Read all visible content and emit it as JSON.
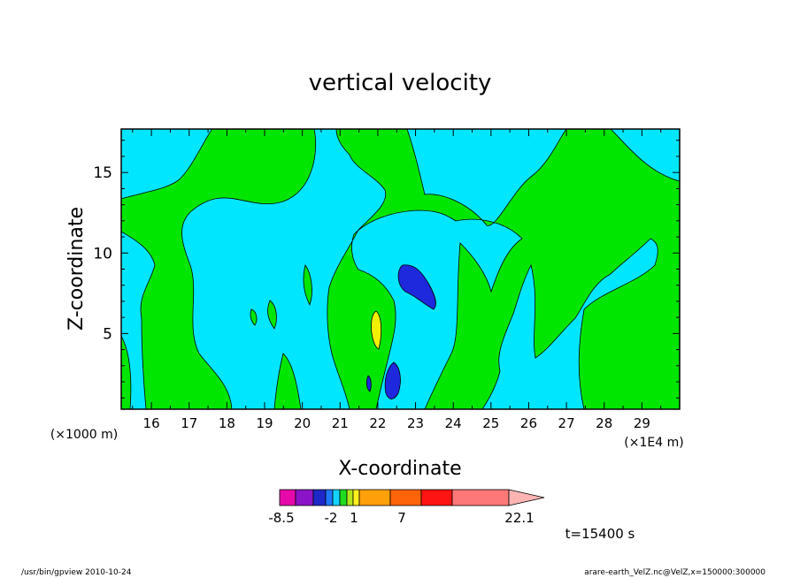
{
  "chart_data": {
    "type": "contour",
    "title": "vertical velocity",
    "xlabel": "X-coordinate",
    "ylabel": "Z-coordinate",
    "x_scale_note": "(×1000 m)",
    "x_unit_note": "(×1E4 m)",
    "xlim": [
      15.2,
      30
    ],
    "ylim": [
      0.3,
      17.7
    ],
    "x_ticks": [
      16,
      17,
      18,
      19,
      20,
      21,
      22,
      23,
      24,
      25,
      26,
      27,
      28,
      29
    ],
    "y_ticks": [
      5,
      10,
      15
    ],
    "colorbar": {
      "labels": [
        "-8.5",
        "-2",
        "1",
        "7",
        "22.1"
      ],
      "colors": [
        "#e60aaa",
        "#8c14c8",
        "#1e28c8",
        "#1e78ff",
        "#14d2ff",
        "#1edc1e",
        "#b4e61e",
        "#fff01e",
        "#ffa00a",
        "#ff640a",
        "#ff1414",
        "#ff7878"
      ],
      "extend_color": "#ffb4b4"
    },
    "field_colors": {
      "background": "#00e6ff",
      "positive": "#00e600",
      "strong_positive": "#f0f000",
      "negative": "#1e28dc"
    },
    "time_label": "t=15400 s"
  },
  "footer": {
    "left": "/usr/bin/gpview  2010-10-24",
    "right": "arare-earth_VelZ.nc@VelZ,x=150000:300000"
  }
}
